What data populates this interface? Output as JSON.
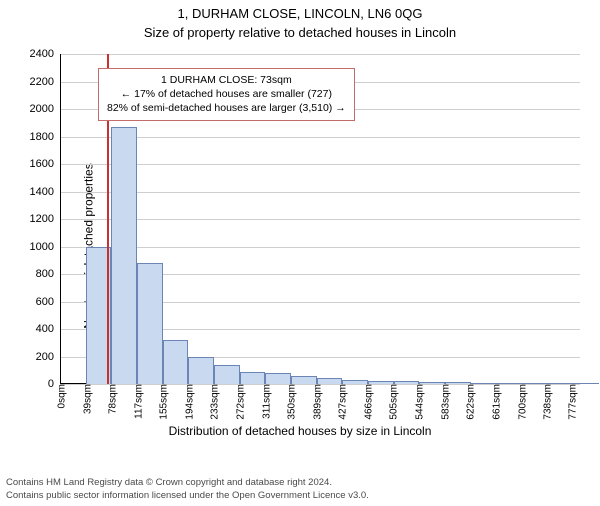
{
  "title_line1": "1, DURHAM CLOSE, LINCOLN, LN6 0QG",
  "title_line2": "Size of property relative to detached houses in Lincoln",
  "ylabel": "Number of detached properties",
  "xlabel": "Distribution of detached houses by size in Lincoln",
  "chart": {
    "type": "histogram",
    "ylim": [
      0,
      2400
    ],
    "ytick_step": 200,
    "xlim": [
      0,
      800
    ],
    "xtick_labels": [
      "0sqm",
      "39sqm",
      "78sqm",
      "117sqm",
      "155sqm",
      "194sqm",
      "233sqm",
      "272sqm",
      "311sqm",
      "350sqm",
      "389sqm",
      "427sqm",
      "466sqm",
      "505sqm",
      "544sqm",
      "583sqm",
      "622sqm",
      "661sqm",
      "700sqm",
      "738sqm",
      "777sqm"
    ],
    "xtick_positions": [
      0,
      39,
      78,
      117,
      155,
      194,
      233,
      272,
      311,
      350,
      389,
      427,
      466,
      505,
      544,
      583,
      622,
      661,
      700,
      738,
      777
    ],
    "xmax_plot": 790,
    "bar_fill": "#c8d9f0",
    "bar_stroke": "#6b86b4",
    "bar_width_sqm": 39,
    "values": [
      0,
      1000,
      1870,
      880,
      320,
      200,
      140,
      90,
      80,
      55,
      45,
      30,
      25,
      22,
      15,
      14,
      10,
      9,
      6,
      4,
      3
    ],
    "grid_color": "#cfcfcf",
    "axis_color": "#000000",
    "marker_x": 73,
    "marker_color": "#c93030"
  },
  "annotation": {
    "line1": "1 DURHAM CLOSE: 73sqm",
    "line2": "← 17% of detached houses are smaller (727)",
    "line3": "82% of semi-detached houses are larger (3,510) →",
    "border_color": "#c46b6b"
  },
  "footer": {
    "line1": "Contains HM Land Registry data © Crown copyright and database right 2024.",
    "line2": "Contains public sector information licensed under the Open Government Licence v3.0."
  },
  "typography": {
    "title_fontsize": 13,
    "label_fontsize": 12,
    "tick_fontsize": 11,
    "footer_fontsize": 9.5
  }
}
